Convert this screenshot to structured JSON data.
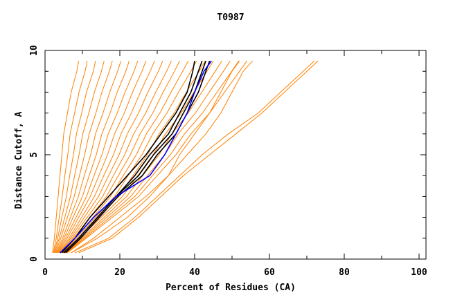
{
  "chart_data": {
    "type": "line",
    "title": "T0987",
    "xlabel": "Percent of Residues (CA)",
    "ylabel": "Distance Cutoff, A",
    "xlim": [
      0,
      102
    ],
    "ylim": [
      0,
      10
    ],
    "x_ticks": [
      "0",
      "20",
      "40",
      "60",
      "80",
      "100"
    ],
    "y_ticks": [
      "0",
      "5",
      "10"
    ],
    "grid": false,
    "colors": {
      "others": "#ff8000",
      "highlight": "#000000",
      "selected": "#0000ff"
    },
    "y": [
      0.3,
      1,
      2,
      3,
      4,
      5,
      6,
      7,
      8,
      9,
      9.5
    ],
    "series": [
      {
        "name": "model",
        "color": "others",
        "x": [
          2,
          2.5,
          3,
          3.5,
          4,
          4.5,
          5,
          6,
          7,
          8.5,
          9
        ]
      },
      {
        "name": "model",
        "color": "others",
        "x": [
          2.2,
          3,
          3.8,
          4.6,
          5.3,
          6.1,
          6.7,
          7.9,
          9.1,
          10.7,
          11.3
        ]
      },
      {
        "name": "model",
        "color": "others",
        "x": [
          2.4,
          3.4,
          4.5,
          5.7,
          6.6,
          7.6,
          8.4,
          9.8,
          11.1,
          12.9,
          13.5
        ]
      },
      {
        "name": "model",
        "color": "others",
        "x": [
          2.6,
          3.8,
          5.3,
          6.8,
          7.9,
          9.1,
          10.1,
          11.7,
          13.2,
          15.1,
          15.8
        ]
      },
      {
        "name": "model",
        "color": "others",
        "x": [
          2.8,
          4.2,
          6,
          7.8,
          9.2,
          10.6,
          11.8,
          13.6,
          15.2,
          17.2,
          18
        ]
      },
      {
        "name": "model",
        "color": "others",
        "x": [
          3,
          4.7,
          6.8,
          8.9,
          10.5,
          12.2,
          13.5,
          15.5,
          17.3,
          19.4,
          20.3
        ]
      },
      {
        "name": "model",
        "color": "others",
        "x": [
          3.2,
          5.1,
          7.5,
          10,
          11.8,
          13.7,
          15.2,
          17.4,
          19.3,
          21.6,
          22.5
        ]
      },
      {
        "name": "model",
        "color": "others",
        "x": [
          3.4,
          5.5,
          8.3,
          11.1,
          13.1,
          15.2,
          16.9,
          19.3,
          21.4,
          23.8,
          24.8
        ]
      },
      {
        "name": "model",
        "color": "others",
        "x": [
          3.6,
          5.9,
          9,
          12.1,
          14.4,
          16.7,
          18.6,
          21.2,
          23.4,
          25.9,
          27
        ]
      },
      {
        "name": "model",
        "color": "others",
        "x": [
          3.8,
          6.4,
          9.8,
          13.2,
          15.7,
          18.3,
          20.3,
          23.1,
          25.5,
          28.1,
          29.3
        ]
      },
      {
        "name": "model",
        "color": "others",
        "x": [
          4,
          6.8,
          10.5,
          14.3,
          17,
          19.8,
          22,
          25,
          27.5,
          30.3,
          31.5
        ]
      },
      {
        "name": "model",
        "color": "others",
        "x": [
          4.2,
          7.2,
          11.3,
          15.4,
          18.3,
          21.3,
          23.7,
          26.9,
          29.6,
          32.5,
          33.8
        ]
      },
      {
        "name": "model",
        "color": "others",
        "x": [
          4.4,
          7.6,
          12,
          16.4,
          19.6,
          22.8,
          25.4,
          28.8,
          31.6,
          34.6,
          36
        ]
      },
      {
        "name": "model",
        "color": "others",
        "x": [
          4.6,
          8.1,
          12.8,
          17.5,
          20.9,
          24.4,
          27.1,
          30.7,
          33.7,
          36.8,
          38.3
        ]
      },
      {
        "name": "model",
        "color": "others",
        "x": [
          4.8,
          8.5,
          13.5,
          18.6,
          22.2,
          25.9,
          28.8,
          32.6,
          35.7,
          39,
          40.5
        ]
      },
      {
        "name": "model",
        "color": "others",
        "x": [
          5,
          8.9,
          14.3,
          19.7,
          23.5,
          27.4,
          30.5,
          34.5,
          37.8,
          41.2,
          42.8
        ]
      },
      {
        "name": "model",
        "color": "others",
        "x": [
          5.2,
          9.3,
          15,
          20.7,
          24.8,
          28.9,
          32.2,
          36.4,
          39.8,
          43.3,
          45
        ]
      },
      {
        "name": "model",
        "color": "others",
        "x": [
          5.4,
          9.8,
          15.8,
          21.8,
          26.1,
          30.5,
          33.9,
          38.3,
          41.9,
          45.5,
          47.3
        ]
      },
      {
        "name": "model",
        "color": "others",
        "x": [
          5.6,
          10.2,
          16.5,
          22.9,
          27.4,
          32,
          35.6,
          40.2,
          43.9,
          47.7,
          49.5
        ]
      },
      {
        "name": "model",
        "color": "others",
        "x": [
          5.8,
          10.6,
          17.3,
          24,
          28.7,
          33.5,
          37.3,
          42.1,
          46,
          49.9,
          51.8
        ]
      },
      {
        "name": "model",
        "color": "others",
        "x": [
          6,
          11,
          18,
          25,
          30,
          35,
          39,
          44,
          48,
          52,
          54
        ]
      },
      {
        "name": "model",
        "color": "others",
        "x": [
          7,
          13,
          20,
          27,
          33,
          38,
          43,
          47,
          50,
          53,
          55.5
        ]
      },
      {
        "name": "model",
        "color": "others",
        "x": [
          7,
          14,
          22,
          28,
          33,
          36,
          40,
          44,
          47,
          50,
          52
        ]
      },
      {
        "name": "model",
        "color": "others",
        "x": [
          8,
          17,
          24,
          30,
          36,
          42,
          49,
          57,
          63,
          69,
          72
        ]
      },
      {
        "name": "model",
        "color": "others",
        "x": [
          9,
          18,
          25,
          31,
          37,
          44,
          51,
          58,
          64,
          70,
          73
        ]
      },
      {
        "name": "highlight",
        "color": "highlight",
        "x": [
          4.5,
          8,
          12,
          17,
          22,
          27,
          31,
          35,
          38,
          39.5,
          40
        ]
      },
      {
        "name": "highlight",
        "color": "highlight",
        "x": [
          5,
          9,
          14,
          19,
          24,
          28,
          33,
          36,
          39,
          41,
          42
        ]
      },
      {
        "name": "highlight",
        "color": "highlight",
        "x": [
          5,
          9,
          14,
          19,
          25,
          29,
          34,
          37,
          40,
          42,
          43
        ]
      },
      {
        "name": "highlight",
        "color": "highlight",
        "x": [
          5.5,
          9.5,
          14.5,
          19.5,
          26,
          30,
          35,
          38,
          41,
          43,
          44
        ]
      },
      {
        "name": "selected",
        "color": "selected",
        "x": [
          4,
          8,
          13,
          19,
          28,
          32,
          35,
          38,
          40,
          42.5,
          44.5
        ]
      }
    ]
  }
}
